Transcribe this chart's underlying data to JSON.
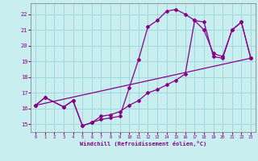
{
  "xlabel": "Windchill (Refroidissement éolien,°C)",
  "bg_color": "#c8eef0",
  "line_color": "#880088",
  "grid_color": "#a0d8dc",
  "xlim": [
    -0.5,
    23.5
  ],
  "ylim": [
    14.5,
    22.7
  ],
  "xticks": [
    0,
    1,
    2,
    3,
    4,
    5,
    6,
    7,
    8,
    9,
    10,
    11,
    12,
    13,
    14,
    15,
    16,
    17,
    18,
    19,
    20,
    21,
    22,
    23
  ],
  "yticks": [
    15,
    16,
    17,
    18,
    19,
    20,
    21,
    22
  ],
  "line1_x": [
    0,
    1,
    3,
    4,
    5,
    6,
    7,
    8,
    9,
    10,
    11,
    12,
    13,
    14,
    15,
    16,
    17,
    18,
    19,
    20,
    21,
    22,
    23
  ],
  "line1_y": [
    16.2,
    16.7,
    16.1,
    16.5,
    14.9,
    15.1,
    15.3,
    15.4,
    15.5,
    17.3,
    19.1,
    21.2,
    21.6,
    22.2,
    22.3,
    22.0,
    21.6,
    21.5,
    19.3,
    19.2,
    21.0,
    21.5,
    19.2
  ],
  "line2_x": [
    0,
    1,
    3,
    4,
    5,
    6,
    7,
    8,
    9,
    10,
    11,
    12,
    13,
    14,
    15,
    16,
    17,
    18,
    19,
    20,
    21,
    22,
    23
  ],
  "line2_y": [
    16.2,
    16.7,
    16.1,
    16.5,
    14.9,
    15.1,
    15.5,
    15.6,
    15.8,
    16.2,
    16.5,
    17.0,
    17.2,
    17.5,
    17.8,
    18.2,
    21.6,
    21.0,
    19.5,
    19.3,
    21.0,
    21.5,
    19.2
  ],
  "line3_x": [
    0,
    23
  ],
  "line3_y": [
    16.2,
    19.2
  ]
}
